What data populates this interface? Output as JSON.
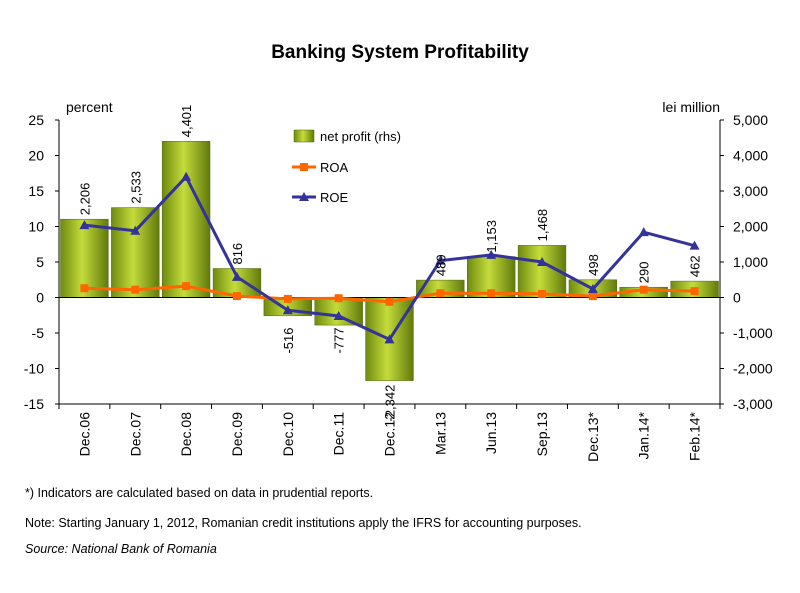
{
  "chart_data": {
    "type": "bar",
    "title": "Banking System Profitability",
    "left_axis_label": "percent",
    "right_axis_label": "lei million",
    "categories": [
      "Dec.06",
      "Dec.07",
      "Dec.08",
      "Dec.09",
      "Dec.10",
      "Dec.11",
      "Dec.12",
      "Mar.13",
      "Jun.13",
      "Sep.13",
      "Dec.13*",
      "Jan.14*",
      "Feb.14*"
    ],
    "left_axis": {
      "min": -15,
      "max": 25,
      "step": 5,
      "ticks": [
        "-15",
        "-10",
        "-5",
        "0",
        "5",
        "10",
        "15",
        "20",
        "25"
      ]
    },
    "right_axis": {
      "min": -3000,
      "max": 5000,
      "step": 1000,
      "ticks": [
        "-3,000",
        "-2,000",
        "-1,000",
        "0",
        "1,000",
        "2,000",
        "3,000",
        "4,000",
        "5,000"
      ]
    },
    "series": [
      {
        "name": "net profit (rhs)",
        "type": "bar",
        "axis": "right",
        "color": "#8fb11a",
        "values": [
          2206,
          2533,
          4401,
          816,
          -516,
          -777,
          -2342,
          489,
          1153,
          1468,
          498,
          290,
          462
        ],
        "labels": [
          "2,206",
          "2,533",
          "4,401",
          "816",
          "-516",
          "-777",
          "-2,342",
          "489",
          "1,153",
          "1,468",
          "498",
          "290",
          "462"
        ]
      },
      {
        "name": "ROA",
        "type": "line",
        "axis": "left",
        "color": "#ff6600",
        "values": [
          1.3,
          1.1,
          1.6,
          0.2,
          -0.2,
          -0.1,
          -0.6,
          0.6,
          0.6,
          0.5,
          0.2,
          1.1,
          0.9
        ]
      },
      {
        "name": "ROE",
        "type": "line",
        "axis": "left",
        "color": "#333399",
        "values": [
          10.2,
          9.4,
          17.0,
          2.9,
          -1.8,
          -2.6,
          -5.9,
          5.2,
          6.0,
          5.0,
          1.2,
          9.2,
          7.3
        ]
      }
    ],
    "legend_position": "top-center",
    "grid": false
  },
  "notes": {
    "note1": "*) Indicators are calculated based on data in prudential reports.",
    "note2": "Note: Starting January 1, 2012, Romanian credit institutions apply the IFRS for accounting purposes.",
    "source": "Source: National Bank of Romania"
  }
}
